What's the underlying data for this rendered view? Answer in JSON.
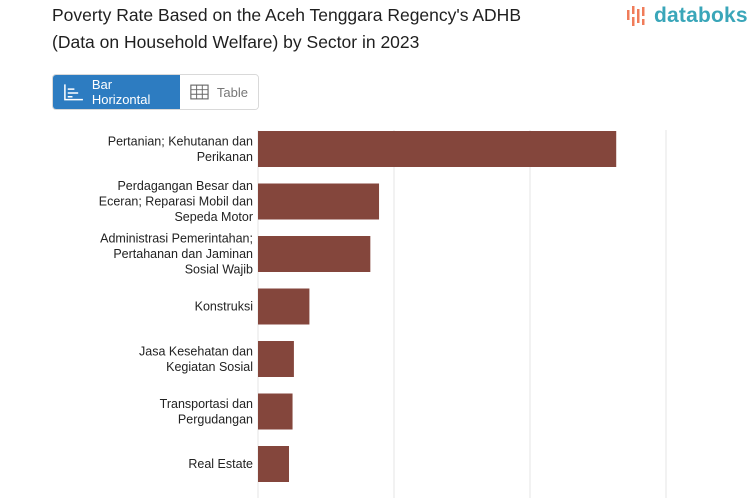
{
  "header": {
    "title_line1": "Poverty Rate Based on the Aceh Tenggara Regency's ADHB",
    "title_line2": "(Data on Household Welfare) by Sector in 2023",
    "logo_text": "databoks"
  },
  "tabs": [
    {
      "label": "Bar Horizontal",
      "icon": "bar-horizontal-icon",
      "active": true
    },
    {
      "label": "Table",
      "icon": "table-icon",
      "active": false
    }
  ],
  "colors": {
    "bar": "#84463c",
    "accent": "#2d7cc1",
    "logo": "#3aa6b9",
    "logo_bars": "#f07c5a"
  },
  "chart_data": {
    "type": "bar",
    "orientation": "horizontal",
    "categories": [
      [
        "Pertanian; Kehutanan dan",
        "Perikanan"
      ],
      [
        "Perdagangan Besar dan",
        "Eceran; Reparasi Mobil dan",
        "Sepeda Motor"
      ],
      [
        "Administrasi Pemerintahan;",
        "Pertahanan dan Jaminan",
        "Sosial Wajib"
      ],
      [
        "Konstruksi"
      ],
      [
        "Jasa Kesehatan dan",
        "Kegiatan Sosial"
      ],
      [
        "Transportasi dan",
        "Pergudangan"
      ],
      [
        "Real Estate"
      ]
    ],
    "values": [
      1317,
      445,
      413,
      189,
      132,
      127,
      114
    ],
    "xlim": [
      0,
      1500
    ],
    "grid": true,
    "gridlines": [
      0,
      500,
      1000,
      1500
    ]
  }
}
